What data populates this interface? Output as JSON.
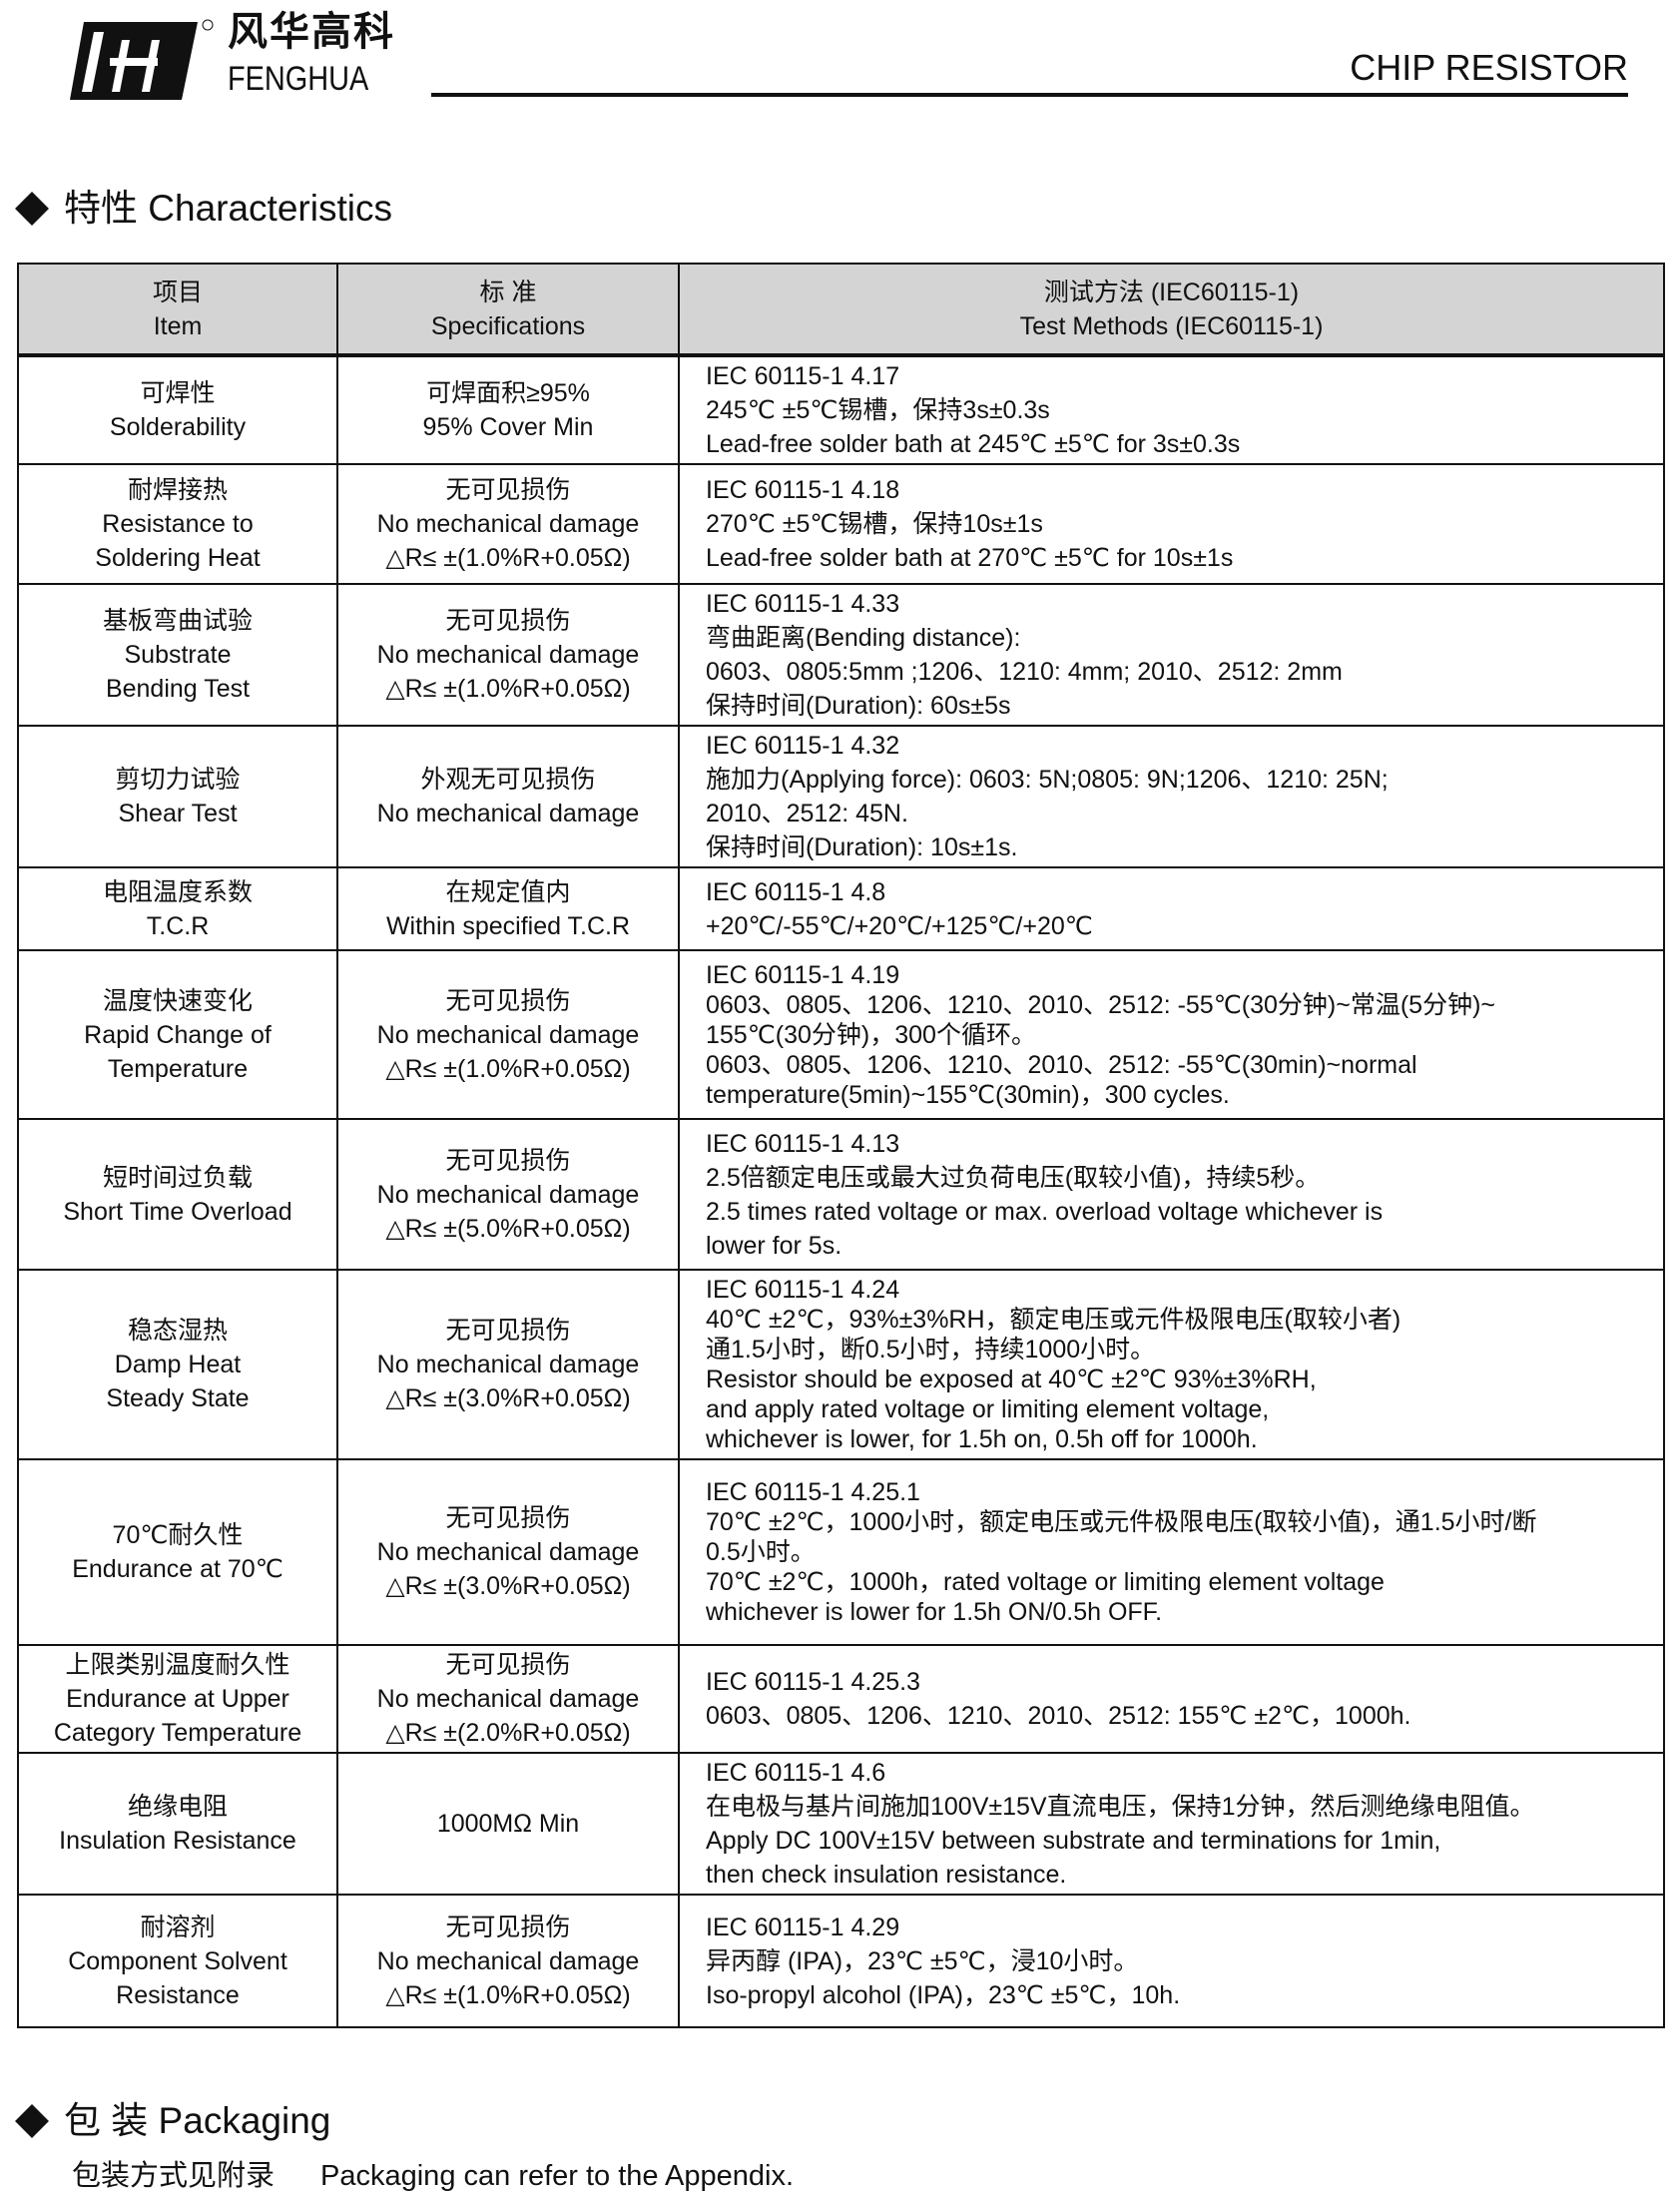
{
  "header": {
    "brand_cn": "风华高科",
    "brand_en": "FENGHUA",
    "registered": "®",
    "doc_title": "CHIP RESISTOR"
  },
  "section1": {
    "title": "特性 Characteristics"
  },
  "table": {
    "headers": [
      [
        "项目",
        "Item"
      ],
      [
        "标 准",
        "Specifications"
      ],
      [
        "测试方法 (IEC60115-1)",
        "Test Methods  (IEC60115-1)"
      ]
    ],
    "rows": [
      {
        "item": [
          "可焊性",
          "Solderability"
        ],
        "spec": [
          "可焊面积≥95%",
          "95% Cover Min"
        ],
        "method": [
          "IEC 60115-1 4.17",
          "245℃ ±5℃锡槽，保持3s±0.3s",
          "Lead-free solder bath at 245℃ ±5℃ for 3s±0.3s"
        ]
      },
      {
        "item": [
          "耐焊接热",
          "Resistance to",
          "Soldering Heat"
        ],
        "spec": [
          "无可见损伤",
          "No mechanical damage",
          "△R≤ ±(1.0%R+0.05Ω)"
        ],
        "method": [
          "IEC 60115-1 4.18",
          "270℃ ±5℃锡槽，保持10s±1s",
          "Lead-free solder bath at 270℃ ±5℃ for 10s±1s"
        ]
      },
      {
        "item": [
          "基板弯曲试验",
          "Substrate",
          "Bending Test"
        ],
        "spec": [
          "无可见损伤",
          "No mechanical damage",
          "△R≤ ±(1.0%R+0.05Ω)"
        ],
        "method": [
          "IEC 60115-1 4.33",
          "弯曲距离(Bending distance):",
          "0603、0805:5mm ;1206、1210:  4mm;  2010、2512:  2mm",
          "保持时间(Duration):  60s±5s"
        ]
      },
      {
        "item": [
          "剪切力试验",
          "Shear Test"
        ],
        "spec": [
          "外观无可见损伤",
          "No mechanical damage"
        ],
        "method": [
          "IEC 60115-1 4.32",
          "施加力(Applying force):  0603:  5N;0805:  9N;1206、1210:  25N;",
          "2010、2512:  45N.",
          "保持时间(Duration):  10s±1s."
        ]
      },
      {
        "item": [
          "电阻温度系数",
          "T.C.R"
        ],
        "spec": [
          "在规定值内",
          "Within specified T.C.R"
        ],
        "method": [
          "IEC 60115-1 4.8",
          "+20℃/-55℃/+20℃/+125℃/+20℃"
        ]
      },
      {
        "item": [
          "温度快速变化",
          "Rapid Change of",
          "Temperature"
        ],
        "spec": [
          "无可见损伤",
          "No mechanical damage",
          "△R≤ ±(1.0%R+0.05Ω)"
        ],
        "method": [
          "IEC 60115-1 4.19",
          "0603、0805、1206、1210、2010、2512:  -55℃(30分钟)~常温(5分钟)~",
          "155℃(30分钟)，300个循环。",
          "0603、0805、1206、1210、2010、2512:  -55℃(30min)~normal",
          "temperature(5min)~155℃(30min)，300 cycles."
        ]
      },
      {
        "item": [
          "短时间过负载",
          "Short Time Overload"
        ],
        "spec": [
          "无可见损伤",
          "No mechanical damage",
          "△R≤ ±(5.0%R+0.05Ω)"
        ],
        "method": [
          "IEC 60115-1 4.13",
          "2.5倍额定电压或最大过负荷电压(取较小值)，持续5秒。",
          "2.5 times rated voltage or max. overload voltage whichever is",
          "lower for 5s."
        ]
      },
      {
        "item": [
          "稳态湿热",
          "Damp Heat",
          "Steady State"
        ],
        "spec": [
          "无可见损伤",
          "No mechanical damage",
          "△R≤ ±(3.0%R+0.05Ω)"
        ],
        "method": [
          "IEC 60115-1 4.24",
          "40℃ ±2℃，93%±3%RH，额定电压或元件极限电压(取较小者)",
          "通1.5小时，断0.5小时，持续1000小时。",
          "Resistor should be exposed at 40℃ ±2℃   93%±3%RH,",
          "and apply rated voltage or limiting element voltage,",
          "whichever is lower,  for 1.5h on, 0.5h off for 1000h."
        ]
      },
      {
        "item": [
          "70℃耐久性",
          "Endurance at 70℃"
        ],
        "spec": [
          "无可见损伤",
          "No mechanical damage",
          "△R≤ ±(3.0%R+0.05Ω)"
        ],
        "method": [
          "IEC 60115-1 4.25.1",
          "70℃ ±2℃，1000小时，额定电压或元件极限电压(取较小值)，通1.5小时/断",
          "0.5小时。",
          "70℃ ±2℃，1000h，rated voltage or limiting element voltage",
          "whichever is lower for 1.5h ON/0.5h OFF."
        ]
      },
      {
        "item": [
          "上限类别温度耐久性",
          "Endurance at Upper",
          "Category Temperature"
        ],
        "spec": [
          "无可见损伤",
          "No mechanical damage",
          "△R≤ ±(2.0%R+0.05Ω)"
        ],
        "method": [
          "IEC 60115-1 4.25.3",
          "0603、0805、1206、1210、2010、2512:  155℃ ±2℃，1000h."
        ]
      },
      {
        "item": [
          "绝缘电阻",
          "Insulation  Resistance"
        ],
        "spec": [
          "1000MΩ  Min"
        ],
        "method": [
          "IEC 60115-1 4.6",
          "在电极与基片间施加100V±15V直流电压，保持1分钟，然后测绝缘电阻值。",
          "Apply DC 100V±15V between substrate and terminations for 1min,",
          "then check insulation resistance."
        ]
      },
      {
        "item": [
          "耐溶剂",
          "Component  Solvent",
          "Resistance"
        ],
        "spec": [
          "无可见损伤",
          "No mechanical damage",
          "△R≤ ±(1.0%R+0.05Ω)"
        ],
        "method": [
          "IEC 60115-1 4.29",
          "异丙醇 (IPA)，23℃ ±5℃，浸10小时。",
          "Iso-propyl alcohol (IPA)，23℃ ±5℃，10h."
        ]
      }
    ]
  },
  "section2": {
    "title": "包 装  Packaging",
    "text_cn": "包装方式见附录",
    "text_en": "Packaging can refer to the Appendix."
  }
}
